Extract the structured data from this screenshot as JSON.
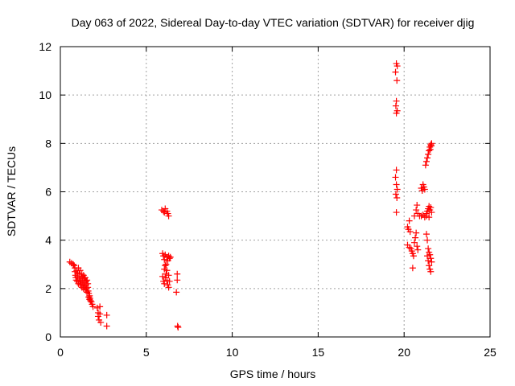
{
  "chart_data": {
    "type": "scatter",
    "title": "Day 063 of 2022, Sidereal Day-to-day VTEC variation (SDTVAR) for receiver djig",
    "xlabel": "GPS time / hours",
    "ylabel": "SDTVAR / TECUs",
    "xlim": [
      0,
      25
    ],
    "ylim": [
      0,
      12
    ],
    "xticks": [
      0,
      5,
      10,
      15,
      20,
      25
    ],
    "yticks": [
      0,
      2,
      4,
      6,
      8,
      10,
      12
    ],
    "xtick_labels": [
      "0",
      "5",
      "10",
      "15",
      "20",
      "25"
    ],
    "ytick_labels": [
      "0",
      "2",
      "4",
      "6",
      "8",
      "10",
      "12"
    ],
    "grid": true,
    "marker": "+",
    "color": "#ff0000",
    "series": [
      {
        "name": "SDTVAR",
        "points": [
          [
            0.55,
            3.1
          ],
          [
            0.65,
            3.05
          ],
          [
            0.75,
            3.0
          ],
          [
            0.8,
            2.95
          ],
          [
            0.85,
            2.85
          ],
          [
            0.85,
            2.7
          ],
          [
            0.88,
            2.55
          ],
          [
            0.9,
            2.45
          ],
          [
            0.92,
            2.35
          ],
          [
            0.95,
            2.75
          ],
          [
            0.98,
            2.3
          ],
          [
            1.0,
            2.65
          ],
          [
            1.0,
            2.5
          ],
          [
            1.05,
            2.2
          ],
          [
            1.05,
            2.85
          ],
          [
            1.1,
            2.4
          ],
          [
            1.1,
            2.6
          ],
          [
            1.12,
            2.3
          ],
          [
            1.15,
            2.15
          ],
          [
            1.15,
            2.75
          ],
          [
            1.2,
            2.5
          ],
          [
            1.2,
            2.35
          ],
          [
            1.22,
            2.2
          ],
          [
            1.25,
            2.05
          ],
          [
            1.25,
            2.6
          ],
          [
            1.3,
            2.45
          ],
          [
            1.3,
            2.3
          ],
          [
            1.32,
            2.15
          ],
          [
            1.35,
            2.0
          ],
          [
            1.35,
            2.55
          ],
          [
            1.4,
            2.4
          ],
          [
            1.4,
            2.25
          ],
          [
            1.42,
            2.1
          ],
          [
            1.45,
            1.95
          ],
          [
            1.45,
            2.45
          ],
          [
            1.5,
            2.3
          ],
          [
            1.5,
            2.15
          ],
          [
            1.52,
            2.0
          ],
          [
            1.55,
            1.85
          ],
          [
            1.55,
            2.35
          ],
          [
            1.6,
            2.2
          ],
          [
            1.6,
            2.05
          ],
          [
            1.62,
            1.9
          ],
          [
            1.65,
            1.8
          ],
          [
            1.65,
            1.65
          ],
          [
            1.7,
            1.7
          ],
          [
            1.7,
            1.55
          ],
          [
            1.72,
            1.6
          ],
          [
            1.75,
            1.5
          ],
          [
            1.8,
            1.45
          ],
          [
            1.85,
            1.35
          ],
          [
            1.9,
            1.25
          ],
          [
            2.15,
            1.2
          ],
          [
            2.2,
            1.0
          ],
          [
            2.2,
            0.85
          ],
          [
            2.25,
            0.7
          ],
          [
            2.3,
            1.25
          ],
          [
            2.3,
            0.95
          ],
          [
            2.35,
            0.6
          ],
          [
            2.7,
            0.9
          ],
          [
            2.7,
            0.45
          ],
          [
            5.9,
            5.25
          ],
          [
            6.0,
            5.2
          ],
          [
            6.05,
            5.15
          ],
          [
            6.1,
            5.3
          ],
          [
            6.2,
            5.2
          ],
          [
            6.25,
            5.1
          ],
          [
            6.3,
            5.0
          ],
          [
            5.95,
            3.45
          ],
          [
            6.0,
            3.35
          ],
          [
            6.05,
            3.2
          ],
          [
            6.1,
            3.4
          ],
          [
            6.15,
            3.0
          ],
          [
            6.2,
            3.3
          ],
          [
            6.25,
            3.15
          ],
          [
            6.3,
            3.35
          ],
          [
            6.35,
            3.25
          ],
          [
            6.4,
            3.3
          ],
          [
            5.95,
            2.5
          ],
          [
            6.0,
            2.3
          ],
          [
            6.05,
            2.2
          ],
          [
            6.1,
            2.45
          ],
          [
            6.15,
            2.6
          ],
          [
            6.2,
            2.35
          ],
          [
            6.25,
            2.15
          ],
          [
            6.3,
            2.05
          ],
          [
            6.35,
            2.3
          ],
          [
            6.05,
            2.8
          ],
          [
            6.1,
            2.95
          ],
          [
            6.2,
            2.75
          ],
          [
            6.3,
            2.55
          ],
          [
            6.8,
            2.6
          ],
          [
            6.8,
            2.35
          ],
          [
            6.75,
            1.85
          ],
          [
            6.82,
            0.45
          ],
          [
            6.85,
            0.4
          ],
          [
            19.55,
            11.3
          ],
          [
            19.6,
            11.2
          ],
          [
            19.5,
            10.95
          ],
          [
            19.58,
            10.6
          ],
          [
            19.55,
            9.75
          ],
          [
            19.52,
            9.55
          ],
          [
            19.6,
            9.35
          ],
          [
            19.55,
            9.25
          ],
          [
            19.55,
            6.9
          ],
          [
            19.5,
            6.6
          ],
          [
            19.55,
            6.3
          ],
          [
            19.6,
            6.1
          ],
          [
            19.52,
            5.9
          ],
          [
            19.58,
            5.75
          ],
          [
            19.55,
            5.15
          ],
          [
            20.2,
            4.55
          ],
          [
            20.25,
            4.45
          ],
          [
            20.3,
            4.8
          ],
          [
            20.35,
            4.35
          ],
          [
            20.2,
            3.8
          ],
          [
            20.3,
            3.7
          ],
          [
            20.4,
            3.65
          ],
          [
            20.45,
            3.55
          ],
          [
            20.5,
            3.45
          ],
          [
            20.55,
            3.35
          ],
          [
            20.5,
            2.85
          ],
          [
            20.6,
            3.9
          ],
          [
            20.65,
            4.1
          ],
          [
            20.7,
            4.3
          ],
          [
            20.75,
            3.75
          ],
          [
            20.8,
            3.6
          ],
          [
            20.6,
            5.0
          ],
          [
            20.7,
            5.25
          ],
          [
            20.75,
            5.45
          ],
          [
            20.8,
            5.1
          ],
          [
            20.9,
            5.0
          ],
          [
            21.0,
            5.0
          ],
          [
            21.1,
            5.05
          ],
          [
            21.2,
            4.95
          ],
          [
            21.0,
            6.15
          ],
          [
            21.05,
            6.05
          ],
          [
            21.1,
            6.3
          ],
          [
            21.15,
            6.2
          ],
          [
            21.2,
            6.1
          ],
          [
            21.25,
            7.1
          ],
          [
            21.3,
            7.25
          ],
          [
            21.35,
            7.4
          ],
          [
            21.4,
            7.55
          ],
          [
            21.45,
            7.7
          ],
          [
            21.5,
            7.85
          ],
          [
            21.55,
            7.95
          ],
          [
            21.6,
            8.0
          ],
          [
            21.58,
            7.9
          ],
          [
            21.52,
            7.75
          ],
          [
            21.3,
            5.1
          ],
          [
            21.35,
            5.2
          ],
          [
            21.4,
            5.3
          ],
          [
            21.45,
            5.4
          ],
          [
            21.5,
            5.25
          ],
          [
            21.55,
            5.35
          ],
          [
            21.6,
            5.15
          ],
          [
            21.3,
            5.0
          ],
          [
            21.45,
            4.95
          ],
          [
            21.3,
            4.25
          ],
          [
            21.35,
            4.0
          ],
          [
            21.4,
            3.65
          ],
          [
            21.45,
            3.5
          ],
          [
            21.5,
            3.4
          ],
          [
            21.55,
            3.25
          ],
          [
            21.35,
            3.35
          ],
          [
            21.4,
            3.15
          ],
          [
            21.45,
            2.95
          ],
          [
            21.5,
            2.8
          ],
          [
            21.55,
            2.7
          ],
          [
            21.6,
            3.1
          ]
        ]
      }
    ]
  }
}
